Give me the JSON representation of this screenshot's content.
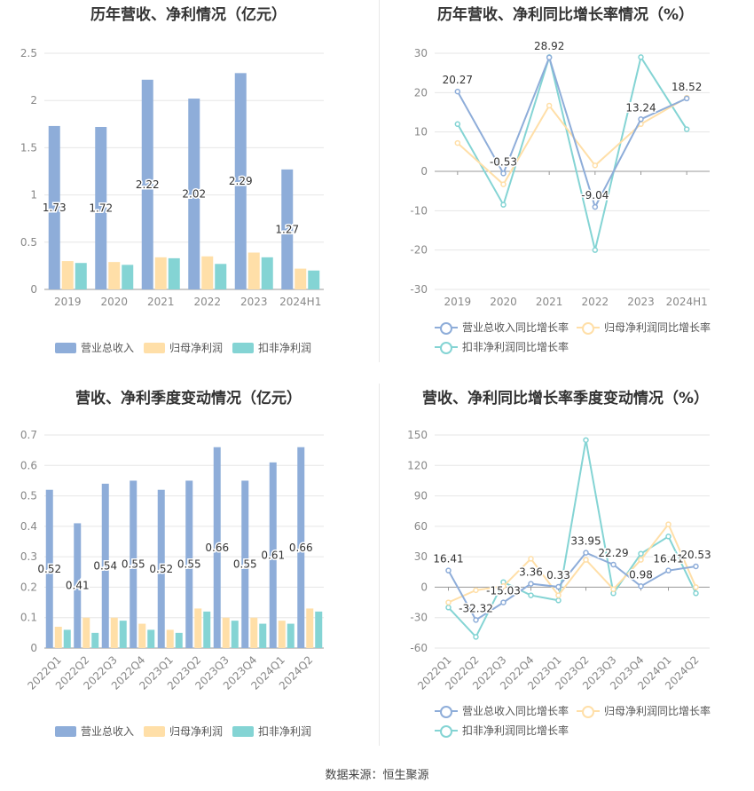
{
  "source_text": "数据来源：恒生聚源",
  "colors": {
    "revenue": "#8eadd9",
    "parent": "#ffdfa8",
    "nonrec": "#84d4d4",
    "grid": "#e6e6e6",
    "axis": "#999999",
    "tick": "#888888"
  },
  "chart_data": [
    {
      "type": "bar",
      "title": "历年营收、净利情况（亿元）",
      "categories": [
        "2019",
        "2020",
        "2021",
        "2022",
        "2023",
        "2024H1"
      ],
      "ylim": [
        0,
        2.5
      ],
      "yticks": [
        "0",
        "0.5",
        "1",
        "1.5",
        "2",
        "2.5"
      ],
      "series": [
        {
          "name": "营业总收入",
          "values": [
            1.73,
            1.72,
            2.22,
            2.02,
            2.29,
            1.27
          ],
          "labels": [
            "1.73",
            "1.72",
            "2.22",
            "2.02",
            "2.29",
            "1.27"
          ]
        },
        {
          "name": "归母净利润",
          "values": [
            0.3,
            0.29,
            0.34,
            0.35,
            0.39,
            0.22
          ]
        },
        {
          "name": "扣非净利润",
          "values": [
            0.28,
            0.26,
            0.33,
            0.27,
            0.34,
            0.2
          ]
        }
      ],
      "legend": "bottom"
    },
    {
      "type": "line",
      "title": "历年营收、净利同比增长率情况（%）",
      "categories": [
        "2019",
        "2020",
        "2021",
        "2022",
        "2023",
        "2024H1"
      ],
      "ylim": [
        -30,
        30
      ],
      "yticks": [
        "-30",
        "-20",
        "-10",
        "0",
        "10",
        "20",
        "30"
      ],
      "series": [
        {
          "name": "营业总收入同比增长率",
          "values": [
            20.27,
            -0.53,
            28.92,
            -9.04,
            13.24,
            18.52
          ],
          "labels": [
            "20.27",
            "-0.53",
            "28.92",
            "-9.04",
            "13.24",
            "18.52"
          ]
        },
        {
          "name": "归母净利润同比增长率",
          "values": [
            7.2,
            -3.3,
            16.7,
            1.5,
            12.0,
            18.7
          ]
        },
        {
          "name": "扣非净利润同比增长率",
          "values": [
            12.0,
            -8.5,
            29.0,
            -20.0,
            29.0,
            10.7
          ]
        }
      ],
      "legend": "bottom"
    },
    {
      "type": "bar",
      "title": "营收、净利季度变动情况（亿元）",
      "categories": [
        "2022Q1",
        "2022Q2",
        "2022Q3",
        "2022Q4",
        "2023Q1",
        "2023Q2",
        "2023Q3",
        "2023Q4",
        "2024Q1",
        "2024Q2"
      ],
      "ylim": [
        0,
        0.7
      ],
      "yticks": [
        "0",
        "0.1",
        "0.2",
        "0.3",
        "0.4",
        "0.5",
        "0.6",
        "0.7"
      ],
      "series": [
        {
          "name": "营业总收入",
          "values": [
            0.52,
            0.41,
            0.54,
            0.55,
            0.52,
            0.55,
            0.66,
            0.55,
            0.61,
            0.66
          ],
          "labels": [
            "0.52",
            "0.41",
            "0.54",
            "0.55",
            "0.52",
            "0.55",
            "0.66",
            "0.55",
            "0.61",
            "0.66"
          ]
        },
        {
          "name": "归母净利润",
          "values": [
            0.07,
            0.1,
            0.1,
            0.08,
            0.06,
            0.13,
            0.1,
            0.1,
            0.09,
            0.13
          ]
        },
        {
          "name": "扣非净利润",
          "values": [
            0.06,
            0.05,
            0.09,
            0.06,
            0.05,
            0.12,
            0.09,
            0.08,
            0.08,
            0.12
          ]
        }
      ],
      "legend": "bottom"
    },
    {
      "type": "line",
      "title": "营收、净利同比增长率季度变动情况（%）",
      "categories": [
        "2022Q1",
        "2022Q2",
        "2022Q3",
        "2022Q4",
        "2023Q1",
        "2023Q2",
        "2023Q3",
        "2023Q4",
        "2024Q1",
        "2024Q2"
      ],
      "ylim": [
        -60,
        150
      ],
      "yticks": [
        "-60",
        "-30",
        "0",
        "30",
        "60",
        "90",
        "120",
        "150"
      ],
      "series": [
        {
          "name": "营业总收入同比增长率",
          "values": [
            16.41,
            -32.32,
            -15.03,
            3.36,
            0.33,
            33.95,
            22.29,
            0.98,
            16.41,
            20.53
          ],
          "labels": [
            "16.41",
            "-32.32",
            "-15.03",
            "3.36",
            "0.33",
            "33.95",
            "22.29",
            "0.98",
            "16.41",
            "20.53"
          ]
        },
        {
          "name": "归母净利润同比增长率",
          "values": [
            -15.0,
            -3.0,
            1.0,
            28.0,
            -8.0,
            27.0,
            -2.0,
            27.0,
            62.0,
            0.0
          ]
        },
        {
          "name": "扣非净利润同比增长率",
          "values": [
            -20.0,
            -49.0,
            5.0,
            -8.0,
            -13.0,
            145.0,
            -6.0,
            33.0,
            50.0,
            -6.0
          ]
        }
      ],
      "legend": "bottom"
    }
  ]
}
